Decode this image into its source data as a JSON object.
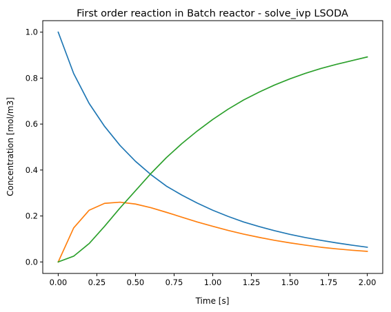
{
  "chart_data": {
    "type": "line",
    "title": "First order reaction in Batch reactor - solve_ivp LSODA",
    "xlabel": "Time [s]",
    "ylabel": "Concentration [mol/m3]",
    "xlim": [
      -0.1,
      2.1
    ],
    "ylim": [
      -0.05,
      1.05
    ],
    "grid": false,
    "x_ticks": [
      0.0,
      0.25,
      0.5,
      0.75,
      1.0,
      1.25,
      1.5,
      1.75,
      2.0
    ],
    "x_tick_labels": [
      "0.00",
      "0.25",
      "0.50",
      "0.75",
      "1.00",
      "1.25",
      "1.50",
      "1.75",
      "2.00"
    ],
    "y_ticks": [
      0.0,
      0.2,
      0.4,
      0.6,
      0.8,
      1.0
    ],
    "y_tick_labels": [
      "0.0",
      "0.2",
      "0.4",
      "0.6",
      "0.8",
      "1.0"
    ],
    "x": [
      0.0,
      0.1,
      0.2,
      0.3,
      0.4,
      0.5,
      0.6,
      0.7,
      0.8,
      0.9,
      1.0,
      1.1,
      1.2,
      1.3,
      1.4,
      1.5,
      1.6,
      1.7,
      1.8,
      1.9,
      2.0
    ],
    "series": [
      {
        "color": "#1f77b4",
        "values": [
          1.0,
          0.82,
          0.69,
          0.59,
          0.507,
          0.438,
          0.38,
          0.33,
          0.291,
          0.256,
          0.225,
          0.198,
          0.174,
          0.154,
          0.136,
          0.12,
          0.106,
          0.094,
          0.083,
          0.073,
          0.064
        ]
      },
      {
        "color": "#ff7f0e",
        "values": [
          0.0,
          0.148,
          0.225,
          0.255,
          0.26,
          0.252,
          0.236,
          0.216,
          0.195,
          0.174,
          0.155,
          0.137,
          0.121,
          0.107,
          0.094,
          0.083,
          0.073,
          0.064,
          0.057,
          0.051,
          0.046
        ]
      },
      {
        "color": "#2ca02c",
        "values": [
          0.0,
          0.025,
          0.08,
          0.155,
          0.235,
          0.31,
          0.385,
          0.454,
          0.515,
          0.57,
          0.62,
          0.665,
          0.705,
          0.739,
          0.77,
          0.797,
          0.821,
          0.842,
          0.86,
          0.876,
          0.892
        ]
      }
    ]
  }
}
